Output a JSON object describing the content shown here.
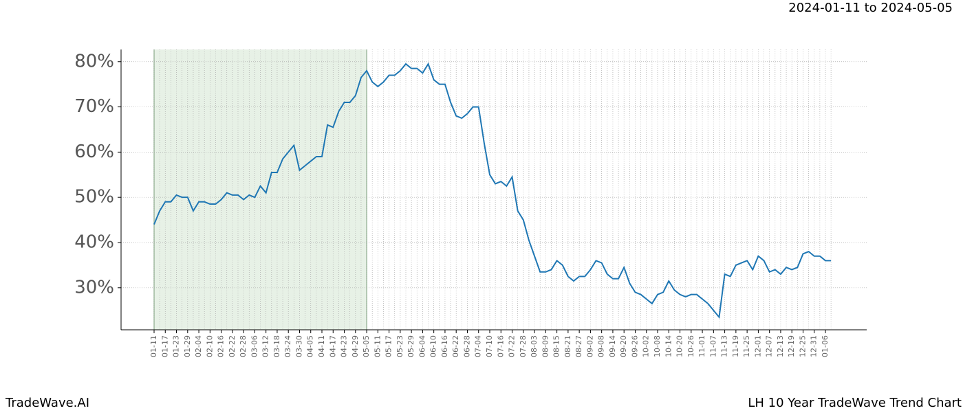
{
  "chart_data": {
    "type": "line",
    "title": "LH 10 Year TradeWave Trend Chart",
    "subtitle": "2024-01-11 to 2024-05-05",
    "brand": "TradeWave.AI",
    "categories": [
      "01-11",
      null,
      "01-17",
      null,
      "01-23",
      null,
      "01-29",
      null,
      "02-04",
      null,
      "02-10",
      null,
      "02-16",
      null,
      "02-22",
      null,
      "02-28",
      null,
      "03-06",
      null,
      "03-12",
      null,
      "03-18",
      null,
      "03-24",
      null,
      "03-30",
      null,
      "04-05",
      null,
      "04-11",
      null,
      "04-17",
      null,
      "04-23",
      null,
      "04-29",
      null,
      "05-05",
      null,
      "05-11",
      null,
      "05-17",
      null,
      "05-23",
      null,
      "05-29",
      null,
      "06-04",
      null,
      "06-10",
      null,
      "06-16",
      null,
      "06-22",
      null,
      "06-28",
      null,
      "07-04",
      null,
      "07-10",
      null,
      "07-16",
      null,
      "07-22",
      null,
      "07-28",
      null,
      "08-03",
      null,
      "08-09",
      null,
      "08-15",
      null,
      "08-21",
      null,
      "08-27",
      null,
      "09-02",
      null,
      "09-08",
      null,
      "09-14",
      null,
      "09-20",
      null,
      "09-26",
      null,
      "10-02",
      null,
      "10-08",
      null,
      "10-14",
      null,
      "10-20",
      null,
      "10-26",
      null,
      "11-01",
      null,
      "11-07",
      null,
      "11-13",
      null,
      "11-19",
      null,
      "11-25",
      null,
      "12-01",
      null,
      "12-07",
      null,
      "12-13",
      null,
      "12-19",
      null,
      "12-25",
      null,
      "12-31",
      null,
      "01-06",
      null
    ],
    "series": [
      {
        "name": "LH",
        "color": "#1f77b4",
        "values": [
          44,
          47,
          49,
          49,
          50.5,
          50,
          50,
          47,
          49,
          49,
          48.5,
          48.5,
          49.5,
          51,
          50.5,
          50.5,
          49.5,
          50.5,
          50,
          52.5,
          51,
          55.5,
          55.5,
          58.5,
          60,
          61.5,
          56,
          57,
          58,
          59,
          59,
          66,
          65.5,
          69,
          71,
          71,
          72.5,
          76.5,
          78,
          75.5,
          74.5,
          75.5,
          77,
          77,
          78,
          79.5,
          78.5,
          78.5,
          77.5,
          79.5,
          76,
          75,
          75,
          71,
          68,
          67.5,
          68.5,
          70,
          70,
          62,
          55,
          53,
          53.5,
          52.5,
          54.5,
          47,
          45,
          40.5,
          37,
          33.5,
          33.5,
          34,
          36,
          35,
          32.5,
          31.5,
          32.5,
          32.5,
          34,
          36,
          35.5,
          33,
          32,
          32,
          34.5,
          31,
          29,
          28.5,
          27.5,
          26.5,
          28.5,
          29,
          31.5,
          29.5,
          28.5,
          28,
          28.5,
          28.5,
          27.5,
          26.5,
          25,
          23.5,
          33,
          32.5,
          35,
          35.5,
          36,
          34,
          37,
          36,
          33.5,
          34,
          33,
          34.5,
          34,
          34.5,
          37.5,
          38,
          37,
          37,
          36,
          36
        ]
      }
    ],
    "ylim": [
      20.7,
      82.7
    ],
    "yticks": [
      {
        "value": 30,
        "label": "30%"
      },
      {
        "value": 40,
        "label": "40%"
      },
      {
        "value": 50,
        "label": "50%"
      },
      {
        "value": 60,
        "label": "60%"
      },
      {
        "value": 70,
        "label": "70%"
      },
      {
        "value": 80,
        "label": "80%"
      }
    ],
    "grid": true
  }
}
